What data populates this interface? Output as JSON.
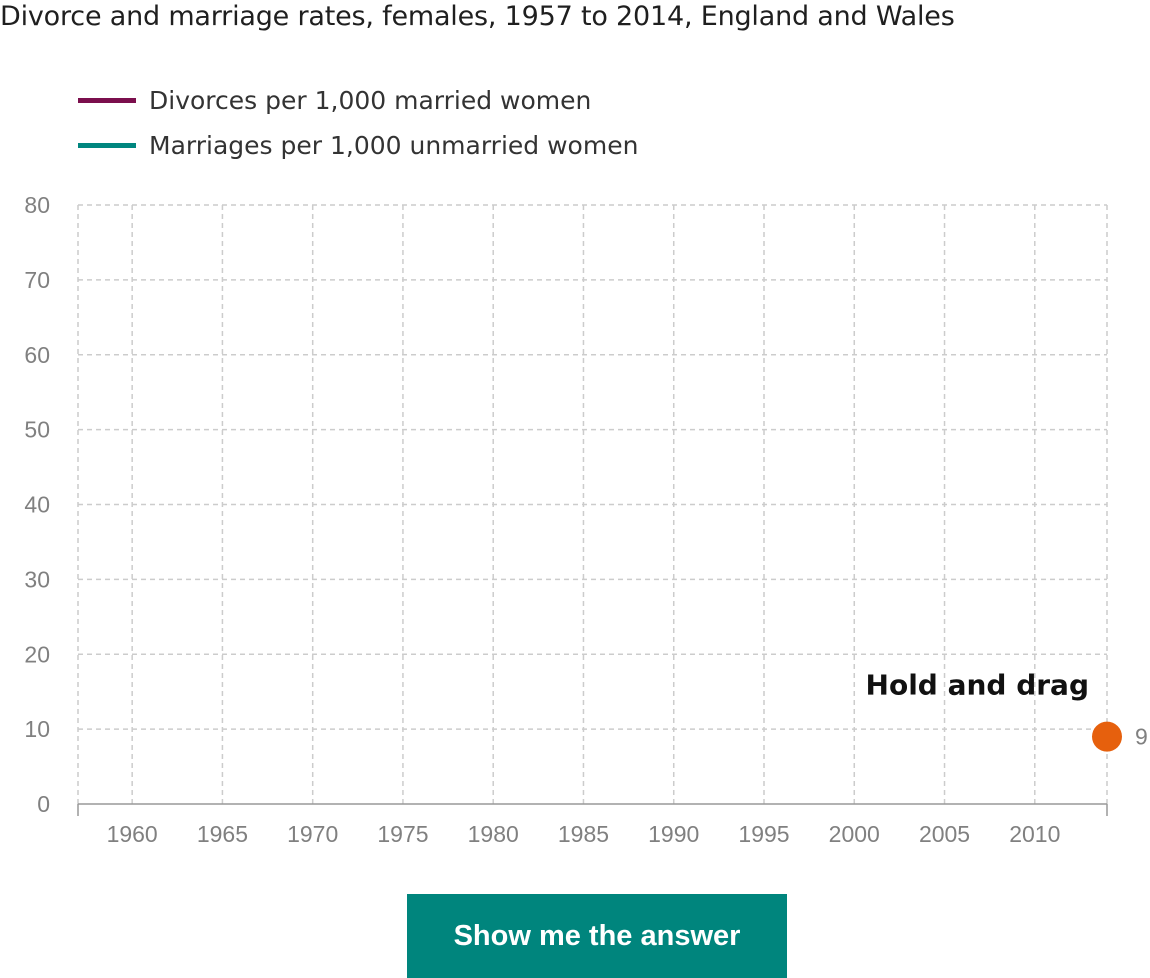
{
  "chart_data": {
    "type": "line",
    "title": "Divorce and marriage rates, females, 1957 to 2014, England and Wales",
    "xlabel": "",
    "ylabel": "",
    "xlim": [
      1957,
      2014
    ],
    "ylim": [
      0,
      80
    ],
    "x_ticks": [
      1960,
      1965,
      1970,
      1975,
      1980,
      1985,
      1990,
      1995,
      2000,
      2005,
      2010
    ],
    "y_ticks": [
      0,
      10,
      20,
      30,
      40,
      50,
      60,
      70,
      80
    ],
    "grid": true,
    "legend_position": "top-left",
    "series": [
      {
        "name": "Divorces per 1,000 married women",
        "color": "#7b0f4d",
        "x": [],
        "y": []
      },
      {
        "name": "Marriages per 1,000 unmarried women",
        "color": "#00867f",
        "x": [],
        "y": []
      }
    ],
    "drag_handle": {
      "x": 2014,
      "y": 9,
      "value_label": "9",
      "color": "#e6600d"
    },
    "annotations": [
      "Hold and drag"
    ]
  },
  "button": {
    "label": "Show me the answer",
    "color": "#00857d"
  }
}
